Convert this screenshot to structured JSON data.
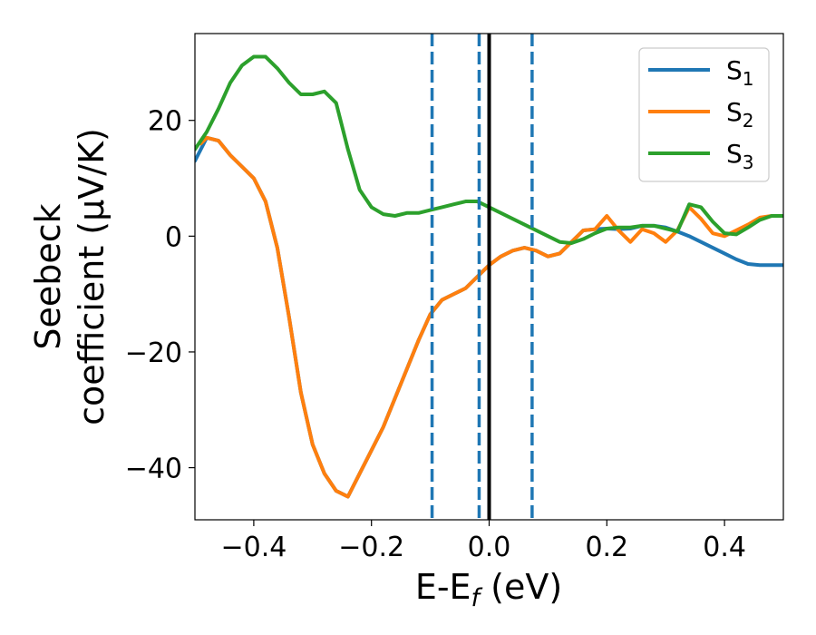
{
  "chart_data": {
    "type": "line",
    "xlabel": "E-E_f (eV)",
    "ylabel_lines": [
      "Seebeck",
      "coefficient  (μV/K)"
    ],
    "xlim": [
      -0.5,
      0.5
    ],
    "ylim": [
      -49,
      35
    ],
    "xticks": [
      -0.4,
      -0.2,
      0.0,
      0.2,
      0.4
    ],
    "xtick_labels": [
      "−0.4",
      "−0.2",
      "0.0",
      "0.2",
      "0.4"
    ],
    "yticks": [
      -40,
      -20,
      0,
      20
    ],
    "ytick_labels": [
      "−40",
      "−20",
      "0",
      "20"
    ],
    "grid": false,
    "legend_position": "top-right",
    "vertical_lines": [
      {
        "x": 0.0,
        "style": "solid",
        "color": "#000000"
      },
      {
        "x": -0.097,
        "style": "dashed",
        "color": "#1f77b4"
      },
      {
        "x": -0.017,
        "style": "dashed",
        "color": "#1f77b4"
      },
      {
        "x": 0.073,
        "style": "dashed",
        "color": "#1f77b4"
      }
    ],
    "series": [
      {
        "name": "S_1",
        "color": "#1f77b4",
        "x": [
          -0.5,
          -0.48,
          -0.46,
          -0.44,
          -0.42,
          -0.4,
          -0.38,
          -0.36,
          -0.34,
          -0.32,
          -0.3,
          -0.28,
          -0.26,
          -0.24,
          -0.22,
          -0.2,
          -0.18,
          -0.16,
          -0.14,
          -0.12,
          -0.1,
          -0.08,
          -0.06,
          -0.04,
          -0.02,
          0.0,
          0.02,
          0.04,
          0.06,
          0.08,
          0.1,
          0.12,
          0.14,
          0.16,
          0.18,
          0.2,
          0.22,
          0.24,
          0.26,
          0.28,
          0.3,
          0.32,
          0.34,
          0.36,
          0.38,
          0.4,
          0.42,
          0.44,
          0.46,
          0.48,
          0.5
        ],
        "y": [
          13,
          17,
          16.5,
          14,
          12,
          10,
          6,
          -2,
          -14,
          -27,
          -36,
          -41,
          -44,
          -45,
          -41,
          -37,
          -33,
          -28,
          -23,
          -18,
          -13.5,
          -11,
          -10,
          -9,
          -7,
          -5,
          -3.5,
          -2.5,
          -2,
          -2.5,
          -3.5,
          -3,
          -1,
          1,
          1.2,
          1.3,
          1.2,
          1.3,
          1.8,
          1.8,
          1.5,
          0.8,
          0,
          -1,
          -2,
          -3,
          -4,
          -4.8,
          -5,
          -5,
          -5
        ]
      },
      {
        "name": "S_2",
        "color": "#ff7f0e",
        "x": [
          -0.49,
          -0.48,
          -0.46,
          -0.44,
          -0.42,
          -0.4,
          -0.38,
          -0.36,
          -0.34,
          -0.32,
          -0.3,
          -0.28,
          -0.26,
          -0.24,
          -0.22,
          -0.2,
          -0.18,
          -0.16,
          -0.14,
          -0.12,
          -0.1,
          -0.08,
          -0.06,
          -0.04,
          -0.02,
          0.0,
          0.02,
          0.04,
          0.06,
          0.08,
          0.1,
          0.12,
          0.14,
          0.16,
          0.18,
          0.2,
          0.22,
          0.24,
          0.26,
          0.28,
          0.3,
          0.32,
          0.34,
          0.36,
          0.38,
          0.4,
          0.42,
          0.44,
          0.46,
          0.48,
          0.5
        ],
        "y": [
          16,
          17,
          16.5,
          14,
          12,
          10,
          6,
          -2,
          -14,
          -27,
          -36,
          -41,
          -44,
          -45,
          -41,
          -37,
          -33,
          -28,
          -23,
          -18,
          -13.5,
          -11,
          -10,
          -9,
          -7,
          -5,
          -3.5,
          -2.5,
          -2,
          -2.5,
          -3.5,
          -3,
          -1,
          1,
          1.2,
          3.5,
          1,
          -1,
          1.2,
          0.5,
          -1,
          1,
          5,
          3,
          0.5,
          0,
          1,
          2,
          3.2,
          3.5,
          3.5
        ]
      },
      {
        "name": "S_3",
        "color": "#2ca02c",
        "x": [
          -0.5,
          -0.48,
          -0.46,
          -0.44,
          -0.42,
          -0.4,
          -0.38,
          -0.36,
          -0.34,
          -0.32,
          -0.3,
          -0.28,
          -0.26,
          -0.24,
          -0.22,
          -0.2,
          -0.18,
          -0.16,
          -0.14,
          -0.12,
          -0.1,
          -0.08,
          -0.06,
          -0.04,
          -0.02,
          0.0,
          0.02,
          0.04,
          0.06,
          0.08,
          0.1,
          0.12,
          0.14,
          0.16,
          0.18,
          0.2,
          0.22,
          0.24,
          0.26,
          0.28,
          0.3,
          0.32,
          0.34,
          0.36,
          0.38,
          0.4,
          0.42,
          0.44,
          0.46,
          0.48,
          0.5
        ],
        "y": [
          15,
          18,
          22,
          26.5,
          29.5,
          31,
          31,
          29,
          26.5,
          24.5,
          24.5,
          25,
          23,
          15,
          8,
          5,
          3.8,
          3.5,
          4,
          4,
          4.5,
          5,
          5.5,
          6,
          6,
          5,
          4,
          3,
          2,
          1,
          0,
          -1,
          -1.2,
          -0.5,
          0.5,
          1.3,
          1.5,
          1.5,
          1.8,
          1.8,
          1.3,
          0.8,
          5.5,
          5,
          2.5,
          0.5,
          0.3,
          1.5,
          2.8,
          3.5,
          3.5
        ]
      }
    ]
  }
}
